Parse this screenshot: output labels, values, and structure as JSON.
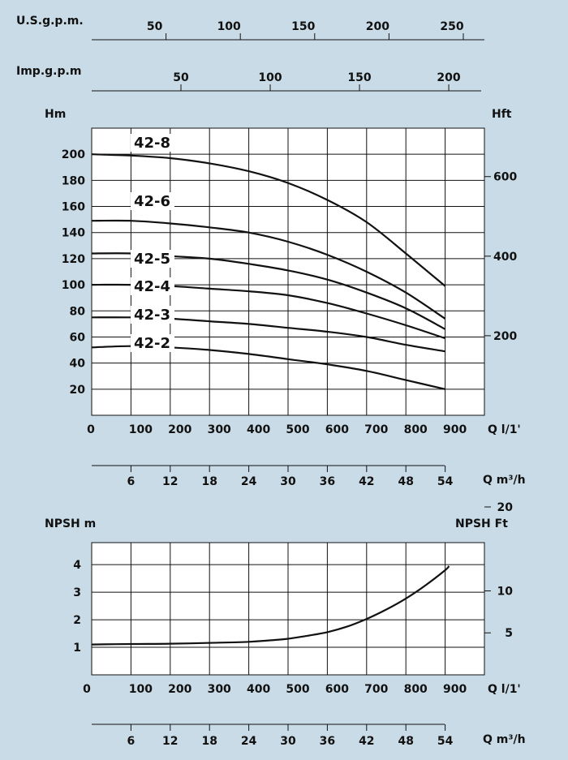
{
  "chart_data": [
    {
      "type": "line",
      "title": "",
      "top_axes": [
        {
          "label": "U.S.g.p.m.",
          "ticks": [
            50,
            100,
            150,
            200,
            250
          ]
        },
        {
          "label": "Imp.g.p.m",
          "ticks": [
            50,
            100,
            150,
            200
          ]
        }
      ],
      "xlabel": "Q l/1'",
      "xlim": [
        0,
        1000
      ],
      "x_ticks": [
        0,
        100,
        200,
        300,
        400,
        500,
        600,
        700,
        800,
        900
      ],
      "secondary_xlabel": "Q m³/h",
      "secondary_x_ticks": [
        6,
        12,
        18,
        24,
        30,
        36,
        42,
        48,
        54
      ],
      "ylabel": "Hm",
      "ylim": [
        0,
        220
      ],
      "y_ticks": [
        20,
        40,
        60,
        80,
        100,
        120,
        140,
        160,
        180,
        200
      ],
      "y2label": "Hft",
      "y2_ticks": [
        200,
        400,
        600
      ],
      "grid": true,
      "series": [
        {
          "name": "42-8",
          "x": [
            0,
            100,
            200,
            300,
            400,
            500,
            600,
            700,
            800,
            900
          ],
          "values": [
            200,
            199,
            197,
            193,
            187,
            178,
            165,
            148,
            124,
            99
          ]
        },
        {
          "name": "42-6",
          "x": [
            0,
            100,
            200,
            300,
            400,
            500,
            600,
            700,
            800,
            900
          ],
          "values": [
            149,
            149,
            147,
            144,
            140,
            133,
            123,
            110,
            94,
            74
          ]
        },
        {
          "name": "42-5",
          "x": [
            0,
            100,
            200,
            300,
            400,
            500,
            600,
            700,
            800,
            900
          ],
          "values": [
            124,
            124,
            122,
            120,
            116,
            111,
            104,
            94,
            82,
            66
          ]
        },
        {
          "name": "42-4",
          "x": [
            0,
            100,
            200,
            300,
            400,
            500,
            600,
            700,
            800,
            900
          ],
          "values": [
            100,
            100,
            99,
            97,
            95,
            92,
            86,
            78,
            69,
            59
          ]
        },
        {
          "name": "42-3",
          "x": [
            0,
            100,
            200,
            300,
            400,
            500,
            600,
            700,
            800,
            900
          ],
          "values": [
            75,
            75,
            74,
            72,
            70,
            67,
            64,
            60,
            54,
            49
          ]
        },
        {
          "name": "42-2",
          "x": [
            0,
            100,
            200,
            300,
            400,
            500,
            600,
            700,
            800,
            900
          ],
          "values": [
            52,
            53,
            52,
            50,
            47,
            43,
            39,
            34,
            27,
            20
          ]
        }
      ]
    },
    {
      "type": "line",
      "title": "",
      "xlabel": "Q l/1'",
      "xlim": [
        0,
        1000
      ],
      "x_ticks": [
        0,
        100,
        200,
        300,
        400,
        500,
        600,
        700,
        800,
        900
      ],
      "secondary_xlabel": "Q m³/h",
      "secondary_x_ticks": [
        6,
        12,
        18,
        24,
        30,
        36,
        42,
        48,
        54
      ],
      "ylabel": "NPSH  m",
      "ylim": [
        0,
        4.8
      ],
      "y_ticks": [
        1,
        2,
        3,
        4
      ],
      "y2label": "NPSH  Ft",
      "y2_ticks": [
        5,
        10,
        20
      ],
      "grid": true,
      "series": [
        {
          "name": "",
          "x": [
            0,
            100,
            200,
            300,
            400,
            450,
            500,
            550,
            600,
            650,
            700,
            750,
            800,
            850,
            900,
            910
          ],
          "values": [
            1.1,
            1.12,
            1.13,
            1.16,
            1.2,
            1.25,
            1.31,
            1.42,
            1.55,
            1.75,
            2.03,
            2.37,
            2.77,
            3.25,
            3.8,
            3.95
          ]
        }
      ]
    }
  ]
}
